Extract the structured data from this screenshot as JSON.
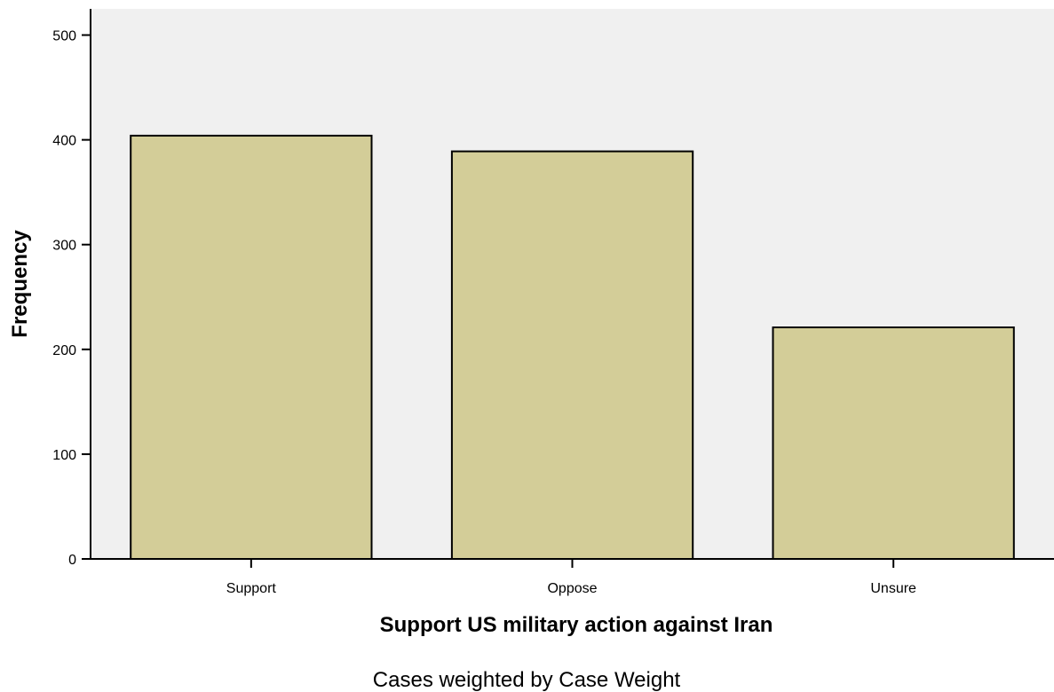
{
  "chart_data": {
    "type": "bar",
    "categories": [
      "Support",
      "Oppose",
      "Unsure"
    ],
    "values": [
      404,
      389,
      221
    ],
    "xlabel": "Support US military action against Iran",
    "ylabel": "Frequency",
    "ylim": [
      0,
      525
    ],
    "yticks": [
      0,
      100,
      200,
      300,
      400,
      500
    ],
    "grid": false,
    "legend": "none",
    "colors": {
      "bar_fill": "#d3cd98",
      "bar_stroke": "#000000",
      "plot_bg": "#f0f0f0"
    }
  },
  "footnote": "Cases weighted by Case Weight"
}
